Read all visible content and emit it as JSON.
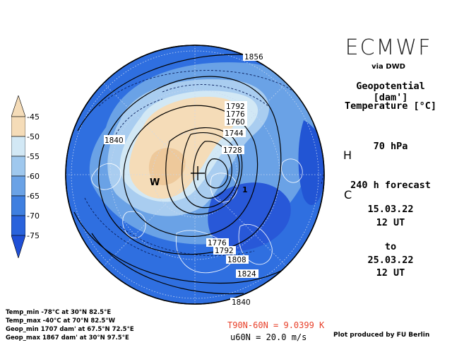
{
  "header": {
    "brand": "ECMWF",
    "source": "via DWD",
    "field1": "Geopotential [dam']",
    "field2": "Temperature [°C]",
    "level": "70 hPa",
    "forecast": "240 h forecast",
    "init_date": "15.03.22",
    "init_time": "12 UT",
    "to": "to",
    "valid_date": "25.03.22",
    "valid_time": "12 UT"
  },
  "colorbar": {
    "labels": [
      "-45",
      "-50",
      "-55",
      "-60",
      "-65",
      "-70",
      "-75"
    ],
    "colors": [
      "#f5dcb8",
      "#d2e8f5",
      "#9fc8ee",
      "#6aa2e6",
      "#3f7fe0",
      "#2a63dc",
      "#1f4fd6"
    ]
  },
  "stats": {
    "temp_min": "Temp_min -78°C at 30°N 82.5°E",
    "temp_max": "Temp_max -40°C at 70°N 82.5°W",
    "geop_min": "Geop_min 1707 dam' at 67.5°N 72.5°E",
    "geop_max": "Geop_max 1867 dam' at 30°N 97.5°E"
  },
  "diagnostics": {
    "t_diff": "T90N-60N = 9.0399 K",
    "u60n": "u60N = 20.0 m/s"
  },
  "credit": "Plot produced by FU Berlin",
  "contour_labels": [
    "1856",
    "1840",
    "1792",
    "1776",
    "1760",
    "1744",
    "1728",
    "1776",
    "1792",
    "1808",
    "1824",
    "1840"
  ],
  "map_marks": {
    "warm": "W",
    "cold_low": "1",
    "high": "H",
    "letter_c": "C"
  },
  "colors": {
    "ocean_blue": "#2f6fe0",
    "deep_blue": "#1f4fd6",
    "mid_blue": "#6aa2e6",
    "light_blue": "#b9d8f2",
    "warm": "#f5dcb8",
    "red_text": "#e8402a"
  }
}
